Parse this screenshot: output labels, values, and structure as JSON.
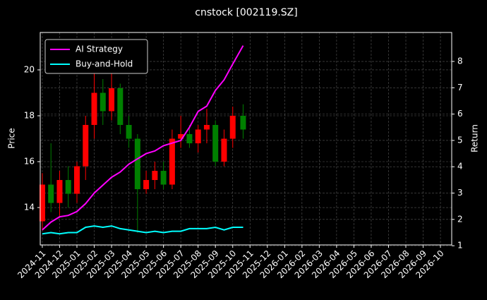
{
  "chart_data": {
    "type": "candlestick",
    "title": "cnstock [002119.SZ]",
    "ylabel": "Price",
    "y2label": "Return",
    "x": [
      0,
      0.5,
      1,
      1.5,
      2,
      2.5,
      3,
      3.5,
      4,
      4.5,
      5,
      5.5,
      6,
      6.5,
      7,
      7.5,
      8,
      8.5,
      9,
      9.5,
      10,
      10.5,
      11,
      11.6
    ],
    "open": [
      13.4,
      15.0,
      14.2,
      15.2,
      14.6,
      15.8,
      17.6,
      19.0,
      18.2,
      19.2,
      17.6,
      17.0,
      14.8,
      15.2,
      15.6,
      15.0,
      17.0,
      17.2,
      16.8,
      17.4,
      17.6,
      16.0,
      17.0,
      18.0
    ],
    "high": [
      15.5,
      16.8,
      15.6,
      15.8,
      16.0,
      18.0,
      20.2,
      19.6,
      20.3,
      19.4,
      18.0,
      17.2,
      15.6,
      16.0,
      16.0,
      17.4,
      18.0,
      17.6,
      17.6,
      18.3,
      17.8,
      17.4,
      18.4,
      18.5
    ],
    "low": [
      13.0,
      13.8,
      13.6,
      14.0,
      14.2,
      15.2,
      17.0,
      17.6,
      17.8,
      17.2,
      16.6,
      12.9,
      14.6,
      14.8,
      14.8,
      14.8,
      16.6,
      16.6,
      16.4,
      16.8,
      15.8,
      15.8,
      16.6,
      17.0
    ],
    "close": [
      15.0,
      14.2,
      15.2,
      14.6,
      15.8,
      17.6,
      19.0,
      18.2,
      19.2,
      17.6,
      17.0,
      14.8,
      15.2,
      15.6,
      15.0,
      17.0,
      17.2,
      16.8,
      17.4,
      17.6,
      16.0,
      17.0,
      18.0,
      17.4
    ],
    "up_color": "#ff0000",
    "down_color": "#008000",
    "series": [
      {
        "name": "AI Strategy",
        "color": "#ff00ff",
        "axis": "y2",
        "values": [
          1.6,
          1.9,
          2.1,
          2.15,
          2.3,
          2.6,
          3.0,
          3.3,
          3.6,
          3.8,
          4.1,
          4.3,
          4.5,
          4.6,
          4.8,
          4.9,
          5.0,
          5.5,
          6.1,
          6.3,
          6.9,
          7.3,
          7.9,
          8.6
        ]
      },
      {
        "name": "Buy-and-Hold",
        "color": "#00ffff",
        "axis": "y2",
        "values": [
          1.45,
          1.5,
          1.45,
          1.5,
          1.5,
          1.7,
          1.75,
          1.7,
          1.75,
          1.65,
          1.6,
          1.55,
          1.5,
          1.55,
          1.5,
          1.55,
          1.55,
          1.65,
          1.65,
          1.65,
          1.7,
          1.6,
          1.7,
          1.7
        ]
      }
    ],
    "xlim": [
      -0.12,
      23.65
    ],
    "xticks": [
      {
        "value": 0,
        "label": "2024-11"
      },
      {
        "value": 1,
        "label": "2024-12"
      },
      {
        "value": 2,
        "label": "2025-01"
      },
      {
        "value": 3,
        "label": "2025-02"
      },
      {
        "value": 4,
        "label": "2025-03"
      },
      {
        "value": 5,
        "label": "2025-04"
      },
      {
        "value": 6,
        "label": "2025-05"
      },
      {
        "value": 7,
        "label": "2025-06"
      },
      {
        "value": 8,
        "label": "2025-07"
      },
      {
        "value": 9,
        "label": "2025-08"
      },
      {
        "value": 10,
        "label": "2025-09"
      },
      {
        "value": 11,
        "label": "2025-10"
      },
      {
        "value": 12,
        "label": "2025-11"
      },
      {
        "value": 13,
        "label": "2025-12"
      },
      {
        "value": 14,
        "label": "2026-01"
      },
      {
        "value": 15,
        "label": "2026-02"
      },
      {
        "value": 16,
        "label": "2026-03"
      },
      {
        "value": 17,
        "label": "2026-04"
      },
      {
        "value": 18,
        "label": "2026-05"
      },
      {
        "value": 19,
        "label": "2026-06"
      },
      {
        "value": 20,
        "label": "2026-07"
      },
      {
        "value": 21,
        "label": "2026-08"
      },
      {
        "value": 22,
        "label": "2026-09"
      },
      {
        "value": 23,
        "label": "2026-10"
      }
    ],
    "ylim": [
      12.37,
      21.63
    ],
    "yticks": [
      14,
      16,
      18,
      20
    ],
    "y2lim": [
      1.03,
      9.1
    ],
    "y2ticks": [
      1,
      2,
      3,
      4,
      5,
      6,
      7,
      8
    ],
    "grid": true,
    "legend": "upper left"
  }
}
